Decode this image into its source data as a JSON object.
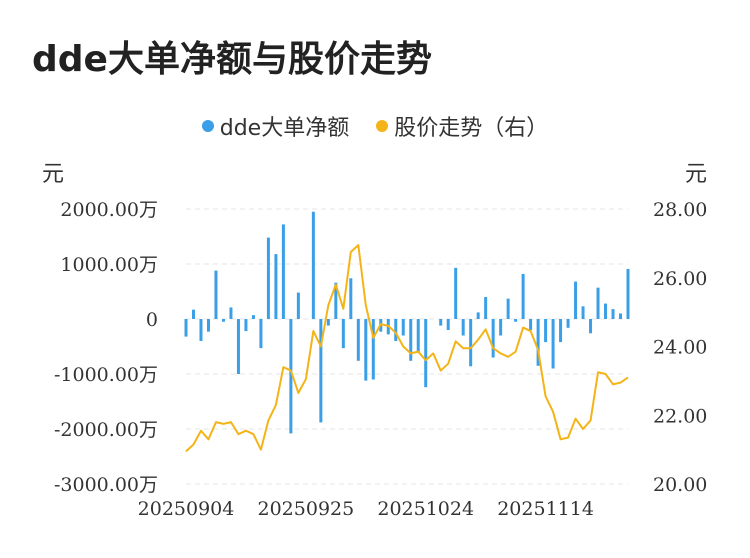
{
  "title": "dde大单净额与股价走势",
  "legend": {
    "bar_label": "dde大单净额",
    "line_label": "股价走势（右）"
  },
  "units": {
    "left": "元",
    "right": "元"
  },
  "colors": {
    "bar": "#3a9fe6",
    "line": "#f4b418",
    "grid": "#e6e6e6"
  },
  "chart_data": {
    "type": "bar+line",
    "title": "dde大单净额与股价走势",
    "x_tick_labels": [
      "20250904",
      "20250925",
      "20251024",
      "20251114"
    ],
    "x_tick_index": [
      0,
      16,
      32,
      48
    ],
    "y_left": {
      "range": [
        -3000,
        2000
      ],
      "ticks": [
        2000,
        1000,
        0,
        -1000,
        -2000,
        -3000
      ],
      "tick_labels": [
        "2000.00万",
        "1000.00万",
        "0",
        "-1000.00万",
        "-2000.00万",
        "-3000.00万"
      ]
    },
    "y_right": {
      "range": [
        20,
        28
      ],
      "ticks": [
        28,
        26,
        24,
        22,
        20
      ],
      "tick_labels": [
        "28.00",
        "26.00",
        "24.00",
        "22.00",
        "20.00"
      ]
    },
    "grid": true,
    "series": [
      {
        "name": "dde大单净额",
        "type": "bar",
        "axis": "left",
        "values": [
          -320,
          170,
          -400,
          -230,
          880,
          -50,
          210,
          -1000,
          -220,
          70,
          -530,
          1480,
          1180,
          1720,
          -2080,
          480,
          0,
          1950,
          -1880,
          -120,
          660,
          -530,
          740,
          -760,
          -1120,
          -1100,
          -230,
          -280,
          -400,
          -300,
          -760,
          -600,
          -1240,
          0,
          -120,
          -200,
          930,
          -300,
          -860,
          120,
          400,
          -700,
          -300,
          370,
          -50,
          820,
          -200,
          -850,
          -420,
          -900,
          -420,
          -160,
          680,
          230,
          -260,
          570,
          280,
          180,
          100,
          910
        ]
      },
      {
        "name": "股价走势（右）",
        "type": "line",
        "axis": "right",
        "values": [
          20.95,
          21.15,
          21.55,
          21.3,
          21.8,
          21.75,
          21.8,
          21.45,
          21.55,
          21.45,
          21.0,
          21.85,
          22.3,
          23.4,
          23.3,
          22.65,
          23.05,
          24.45,
          24.0,
          25.2,
          25.8,
          25.1,
          26.75,
          26.95,
          25.2,
          24.25,
          24.65,
          24.6,
          24.4,
          24.0,
          23.8,
          23.85,
          23.6,
          23.8,
          23.3,
          23.5,
          24.15,
          23.95,
          23.95,
          24.2,
          24.5,
          23.95,
          23.8,
          23.7,
          23.85,
          24.55,
          24.45,
          23.9,
          22.55,
          22.1,
          21.3,
          21.35,
          21.9,
          21.6,
          21.85,
          23.25,
          23.2,
          22.9,
          22.95,
          23.1
        ]
      }
    ]
  }
}
